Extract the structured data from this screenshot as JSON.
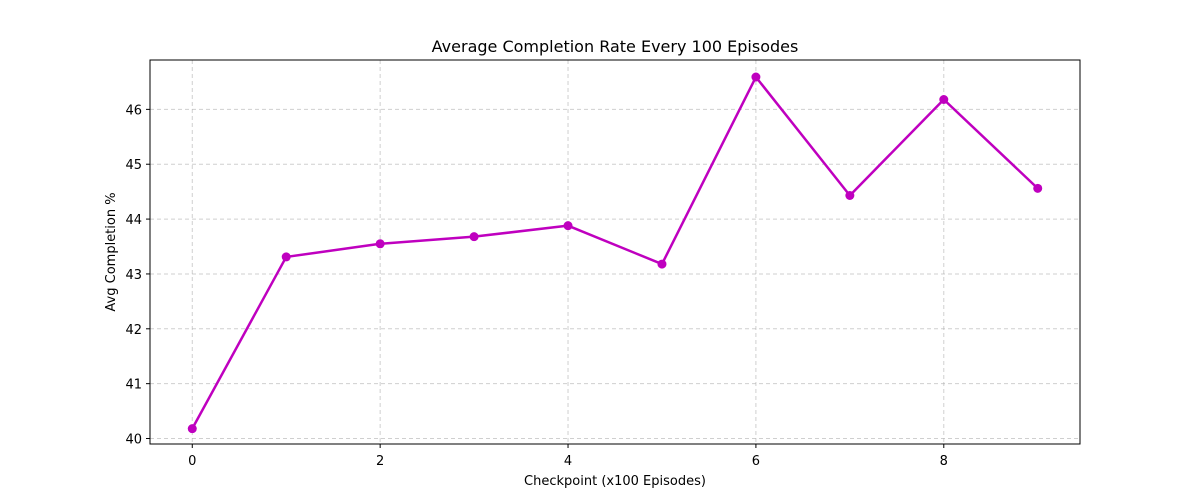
{
  "chart_data": {
    "type": "line",
    "title": "Average Completion Rate Every 100 Episodes",
    "xlabel": "Checkpoint (x100 Episodes)",
    "ylabel": "Avg Completion %",
    "x": [
      0,
      1,
      2,
      3,
      4,
      5,
      6,
      7,
      8,
      9
    ],
    "series": [
      {
        "values": [
          40.18,
          43.31,
          43.55,
          43.68,
          43.88,
          43.18,
          46.59,
          44.43,
          46.18,
          44.56
        ],
        "color": "#bf00bf",
        "marker": "circle"
      }
    ],
    "xlim": [
      -0.45,
      9.45
    ],
    "ylim": [
      39.9,
      46.9
    ],
    "xticks": [
      0,
      2,
      4,
      6,
      8
    ],
    "xtick_labels": [
      "0",
      "2",
      "4",
      "6",
      "8"
    ],
    "yticks": [
      40,
      41,
      42,
      43,
      44,
      45,
      46
    ],
    "ytick_labels": [
      "40",
      "41",
      "42",
      "43",
      "44",
      "45",
      "46"
    ],
    "grid": true,
    "legend": "none"
  }
}
